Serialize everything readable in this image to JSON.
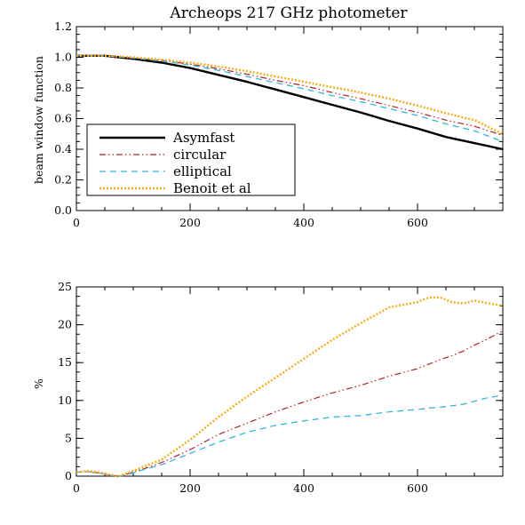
{
  "title": "Archeops 217 GHz photometer",
  "colors": {
    "Asymfast": "#000000",
    "circular": "#b22222",
    "elliptical": "#33b5e5",
    "Benoit et al": "#ffa500"
  },
  "chart_data": [
    {
      "type": "line",
      "title": "Archeops 217 GHz photometer",
      "xlabel": "",
      "ylabel": "beam window function",
      "xlim": [
        0,
        750
      ],
      "ylim": [
        0.0,
        1.2
      ],
      "xticks": [
        "0",
        "200",
        "400",
        "600"
      ],
      "yticks": [
        "0.0",
        "0.2",
        "0.4",
        "0.6",
        "0.8",
        "1.0",
        "1.2"
      ],
      "grid": false,
      "legend_position": "lower-left",
      "x": [
        0,
        50,
        100,
        150,
        200,
        250,
        300,
        350,
        400,
        450,
        500,
        550,
        600,
        650,
        700,
        750
      ],
      "series": [
        {
          "name": "Asymfast",
          "style": "solid",
          "values": [
            1.01,
            1.01,
            0.99,
            0.965,
            0.93,
            0.885,
            0.84,
            0.79,
            0.74,
            0.69,
            0.64,
            0.585,
            0.535,
            0.48,
            0.44,
            0.4
          ]
        },
        {
          "name": "circular",
          "style": "dash-dot-dot",
          "values": [
            1.01,
            1.01,
            0.995,
            0.98,
            0.955,
            0.925,
            0.89,
            0.85,
            0.815,
            0.77,
            0.73,
            0.685,
            0.64,
            0.59,
            0.55,
            0.49
          ]
        },
        {
          "name": "elliptical",
          "style": "dashed",
          "values": [
            1.01,
            1.01,
            0.995,
            0.975,
            0.95,
            0.915,
            0.875,
            0.835,
            0.795,
            0.75,
            0.71,
            0.665,
            0.62,
            0.565,
            0.52,
            0.45
          ]
        },
        {
          "name": "Benoit et al",
          "style": "dotted",
          "values": [
            1.01,
            1.01,
            1.0,
            0.985,
            0.965,
            0.94,
            0.91,
            0.875,
            0.84,
            0.805,
            0.77,
            0.73,
            0.685,
            0.635,
            0.59,
            0.5
          ]
        }
      ]
    },
    {
      "type": "line",
      "title": "",
      "xlabel": "",
      "ylabel": "%",
      "xlim": [
        0,
        750
      ],
      "ylim": [
        0,
        25
      ],
      "xticks": [
        "0",
        "200",
        "400",
        "600"
      ],
      "yticks": [
        "0",
        "5",
        "10",
        "15",
        "20",
        "25"
      ],
      "grid": false,
      "x": [
        0,
        20,
        40,
        60,
        75,
        90,
        120,
        150,
        200,
        250,
        300,
        350,
        400,
        450,
        500,
        550,
        600,
        620,
        640,
        660,
        680,
        700,
        720,
        750
      ],
      "series": [
        {
          "name": "circular",
          "style": "dash-dot-dot",
          "values": [
            0.5,
            0.6,
            0.4,
            0.1,
            0.0,
            0.3,
            1.0,
            1.8,
            3.5,
            5.5,
            7.0,
            8.5,
            9.8,
            11.0,
            12.0,
            13.2,
            14.2,
            14.8,
            15.4,
            15.9,
            16.5,
            17.3,
            18.0,
            19.2
          ]
        },
        {
          "name": "elliptical",
          "style": "dashed",
          "values": [
            0.5,
            0.6,
            0.4,
            0.1,
            0.0,
            0.2,
            0.9,
            1.5,
            3.0,
            4.5,
            5.8,
            6.7,
            7.3,
            7.8,
            8.0,
            8.5,
            8.8,
            9.0,
            9.1,
            9.3,
            9.5,
            9.9,
            10.3,
            10.7
          ]
        },
        {
          "name": "Benoit et al",
          "style": "dotted",
          "values": [
            0.5,
            0.7,
            0.5,
            0.2,
            0.0,
            0.4,
            1.3,
            2.2,
            4.8,
            7.8,
            10.5,
            13.0,
            15.5,
            18.0,
            20.2,
            22.3,
            23.0,
            23.6,
            23.6,
            23.0,
            22.8,
            23.2,
            22.9,
            22.5
          ]
        }
      ]
    }
  ]
}
